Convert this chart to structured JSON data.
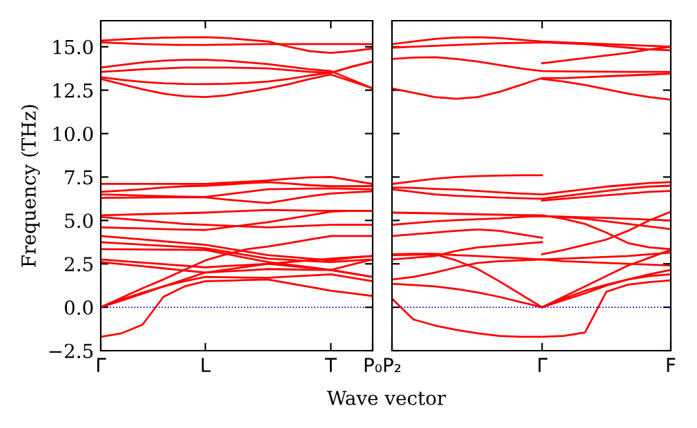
{
  "chart_data": [
    {
      "type": "line",
      "ylabel": "Frequency (THz)",
      "xlabel": "Wave vector",
      "ylim": [
        -2.5,
        16.5
      ],
      "categories": [
        "Γ",
        null,
        null,
        null,
        null,
        "L",
        null,
        null,
        null,
        null,
        null,
        "T",
        null,
        "P₀"
      ],
      "yticks": [
        {
          "value": -2.5,
          "label": "−2.5"
        },
        {
          "value": 0,
          "label": "0.0"
        },
        {
          "value": 2.5,
          "label": "2.5"
        },
        {
          "value": 5,
          "label": "5.0"
        },
        {
          "value": 7.5,
          "label": "7.5"
        },
        {
          "value": 10,
          "label": "10.0"
        },
        {
          "value": 12.5,
          "label": "12.5"
        },
        {
          "value": 15,
          "label": "15.0"
        }
      ],
      "ref_lines": [
        {
          "axis": "y",
          "value": 0,
          "color": "#0000ff",
          "line_style": "dotted"
        }
      ],
      "series": [
        {
          "color": "#ff0000",
          "values": [
            15.35,
            15.42,
            15.48,
            15.52,
            15.54,
            15.55,
            15.5,
            15.4,
            15.3,
            15.0,
            14.75,
            14.65,
            14.75,
            14.9
          ]
        },
        {
          "color": "#ff0000",
          "values": [
            15.25,
            15.2,
            15.15,
            15.12,
            15.1,
            15.1,
            15.12,
            15.14,
            15.15,
            15.15,
            15.15,
            15.15,
            15.15,
            15.15
          ]
        },
        {
          "color": "#ff0000",
          "values": [
            13.8,
            13.95,
            14.1,
            14.2,
            14.25,
            14.25,
            14.2,
            14.1,
            14.0,
            13.85,
            13.7,
            13.6,
            13.1,
            12.6
          ]
        },
        {
          "color": "#ff0000",
          "values": [
            13.55,
            13.62,
            13.7,
            13.75,
            13.8,
            13.8,
            13.8,
            13.78,
            13.75,
            13.65,
            13.55,
            13.5,
            13.85,
            14.15
          ]
        },
        {
          "color": "#ff0000",
          "values": [
            13.25,
            13.1,
            12.98,
            12.9,
            12.86,
            12.85,
            12.87,
            12.92,
            13.0,
            13.15,
            13.35,
            13.5,
            13.85,
            14.15
          ]
        },
        {
          "color": "#ff0000",
          "values": [
            13.15,
            12.85,
            12.55,
            12.3,
            12.15,
            12.1,
            12.2,
            12.4,
            12.6,
            12.85,
            13.15,
            13.4,
            13.0,
            12.6
          ]
        },
        {
          "color": "#ff0000",
          "values": [
            7.1,
            7.1,
            7.1,
            7.1,
            7.1,
            7.1,
            7.17,
            7.23,
            7.3,
            7.4,
            7.48,
            7.5,
            7.3,
            7.1
          ]
        },
        {
          "color": "#ff0000",
          "values": [
            6.65,
            6.72,
            6.8,
            6.9,
            6.97,
            7.0,
            7.07,
            7.14,
            7.2,
            7.12,
            7.03,
            6.97,
            6.97,
            6.98
          ]
        },
        {
          "color": "#ff0000",
          "values": [
            6.5,
            6.47,
            6.43,
            6.4,
            6.37,
            6.35,
            6.5,
            6.65,
            6.8,
            6.82,
            6.84,
            6.85,
            6.82,
            6.8
          ]
        },
        {
          "color": "#ff0000",
          "values": [
            6.3,
            6.31,
            6.32,
            6.33,
            6.33,
            6.33,
            6.2,
            6.1,
            6.0,
            6.2,
            6.4,
            6.55,
            6.62,
            6.68
          ]
        },
        {
          "color": "#ff0000",
          "values": [
            5.3,
            5.33,
            5.36,
            5.39,
            5.42,
            5.45,
            5.5,
            5.55,
            5.6,
            5.58,
            5.56,
            5.55,
            5.55,
            5.55
          ]
        },
        {
          "color": "#ff0000",
          "values": [
            5.2,
            5.1,
            5.0,
            4.9,
            4.8,
            4.75,
            4.7,
            4.65,
            4.6,
            4.65,
            4.7,
            4.75,
            4.75,
            4.75
          ]
        },
        {
          "color": "#ff0000",
          "values": [
            4.6,
            4.57,
            4.54,
            4.5,
            4.47,
            4.45,
            4.6,
            4.75,
            4.9,
            5.1,
            5.3,
            5.5,
            5.55,
            5.55
          ]
        },
        {
          "color": "#ff0000",
          "values": [
            4.1,
            4.0,
            3.9,
            3.8,
            3.7,
            3.6,
            3.4,
            3.2,
            3.0,
            2.9,
            2.8,
            2.7,
            2.85,
            2.95
          ]
        },
        {
          "color": "#ff0000",
          "values": [
            3.75,
            3.68,
            3.61,
            3.54,
            3.47,
            3.4,
            3.2,
            3.0,
            2.8,
            2.73,
            2.66,
            2.6,
            2.68,
            2.75
          ]
        },
        {
          "color": "#ff0000",
          "values": [
            3.35,
            3.34,
            3.33,
            3.32,
            3.31,
            3.3,
            3.07,
            2.83,
            2.6,
            2.45,
            2.3,
            2.15,
            2.45,
            2.75
          ]
        },
        {
          "color": "#ff0000",
          "values": [
            2.75,
            2.66,
            2.57,
            2.48,
            2.39,
            2.3,
            2.37,
            2.43,
            2.5,
            2.6,
            2.7,
            2.8,
            2.88,
            2.95
          ]
        },
        {
          "color": "#ff0000",
          "values": [
            2.6,
            2.48,
            2.36,
            2.24,
            2.12,
            2.0,
            2.07,
            2.13,
            2.2,
            2.18,
            2.16,
            2.15,
            1.95,
            1.75
          ]
        },
        {
          "color": "#ff0000",
          "values": [
            0,
            0.55,
            1.1,
            1.6,
            2.15,
            2.7,
            3.05,
            3.35,
            3.5,
            3.7,
            3.9,
            4.1,
            4.1,
            4.1
          ]
        },
        {
          "color": "#ff0000",
          "values": [
            0,
            0.45,
            0.85,
            1.2,
            1.5,
            1.75,
            1.73,
            1.71,
            1.7,
            1.77,
            1.83,
            1.9,
            1.7,
            1.5
          ]
        },
        {
          "color": "#ff0000",
          "values": [
            0,
            0.38,
            0.78,
            1.2,
            1.6,
            2.0,
            2.17,
            2.33,
            2.5,
            2.38,
            2.27,
            2.15,
            1.95,
            1.75
          ]
        },
        {
          "color": "#ff0000",
          "values": [
            -1.7,
            -1.5,
            -1.0,
            0.6,
            1.2,
            1.5,
            1.53,
            1.57,
            1.6,
            1.38,
            1.17,
            0.95,
            0.8,
            0.65
          ]
        }
      ]
    },
    {
      "type": "line",
      "ylim": [
        -2.5,
        16.5
      ],
      "tick_labels": "x",
      "categories": [
        "P₂",
        null,
        null,
        null,
        null,
        null,
        null,
        "Γ",
        null,
        null,
        null,
        null,
        null,
        "F"
      ],
      "yticks": [
        {
          "value": -2.5,
          "label": null
        },
        {
          "value": 0,
          "label": null
        },
        {
          "value": 2.5,
          "label": null
        },
        {
          "value": 5,
          "label": null
        },
        {
          "value": 7.5,
          "label": null
        },
        {
          "value": 10,
          "label": null
        },
        {
          "value": 12.5,
          "label": null
        },
        {
          "value": 15,
          "label": null
        }
      ],
      "ref_lines": [
        {
          "axis": "y",
          "value": 0,
          "color": "#0000ff",
          "line_style": "dotted"
        }
      ],
      "series": [
        {
          "color": "#ff0000",
          "values": [
            15.15,
            15.3,
            15.45,
            15.53,
            15.55,
            15.5,
            15.4,
            15.3,
            15.25,
            15.2,
            15.15,
            15.1,
            15.05,
            15.0
          ]
        },
        {
          "color": "#ff0000",
          "values": [
            14.95,
            15.0,
            15.05,
            15.1,
            15.15,
            15.2,
            15.22,
            15.25,
            15.2,
            15.15,
            15.05,
            14.95,
            14.85,
            14.8
          ]
        },
        {
          "color": "#ff0000",
          "values": [
            14.3,
            14.38,
            14.4,
            14.3,
            14.15,
            13.95,
            13.75,
            13.6,
            13.58,
            13.57,
            13.56,
            13.55,
            13.55,
            13.55
          ]
        },
        {
          "color": "#ff0000",
          "values": [
            12.6,
            12.35,
            12.1,
            12.0,
            12.1,
            12.4,
            12.8,
            13.2,
            13.2,
            13.25,
            13.3,
            13.35,
            13.4,
            13.45
          ]
        },
        {
          "color": "#ff0000",
          "values": [
            null,
            null,
            null,
            null,
            null,
            null,
            null,
            14.05,
            14.2,
            14.35,
            14.5,
            14.65,
            14.85,
            15.0
          ]
        },
        {
          "color": "#ff0000",
          "values": [
            null,
            null,
            null,
            null,
            null,
            null,
            null,
            13.15,
            13.0,
            12.8,
            12.55,
            12.3,
            12.1,
            11.95
          ]
        },
        {
          "color": "#ff0000",
          "values": [
            7.1,
            7.25,
            7.4,
            7.5,
            7.55,
            7.58,
            7.6,
            7.6,
            null,
            null,
            null,
            null,
            null,
            null
          ]
        },
        {
          "color": "#ff0000",
          "values": [
            6.9,
            6.88,
            6.82,
            6.78,
            6.7,
            6.62,
            6.55,
            6.5,
            6.65,
            6.8,
            6.95,
            7.05,
            7.15,
            7.2
          ]
        },
        {
          "color": "#ff0000",
          "values": [
            6.8,
            6.65,
            6.5,
            6.42,
            6.37,
            6.32,
            6.28,
            6.25,
            6.4,
            6.55,
            6.7,
            6.85,
            6.95,
            7.0
          ]
        },
        {
          "color": "#ff0000",
          "values": [
            null,
            null,
            null,
            null,
            null,
            null,
            null,
            6.15,
            6.25,
            6.35,
            6.45,
            6.55,
            6.65,
            6.7
          ]
        },
        {
          "color": "#ff0000",
          "values": [
            5.45,
            5.43,
            5.41,
            5.38,
            5.35,
            5.33,
            5.31,
            5.3,
            5.1,
            4.8,
            4.3,
            3.7,
            3.45,
            3.35
          ]
        },
        {
          "color": "#ff0000",
          "values": [
            4.75,
            4.85,
            4.95,
            5.02,
            5.07,
            5.12,
            5.2,
            5.25,
            5.22,
            5.18,
            5.15,
            5.1,
            5.05,
            5.0
          ]
        },
        {
          "color": "#ff0000",
          "values": [
            null,
            null,
            null,
            null,
            null,
            null,
            null,
            5.25,
            5.2,
            5.1,
            4.95,
            4.8,
            4.65,
            4.5
          ]
        },
        {
          "color": "#ff0000",
          "values": [
            4.1,
            4.2,
            4.3,
            4.4,
            4.48,
            4.4,
            4.2,
            4.0,
            null,
            null,
            null,
            null,
            null,
            null
          ]
        },
        {
          "color": "#ff0000",
          "values": [
            3.05,
            3.08,
            3.08,
            3.0,
            2.95,
            2.88,
            2.82,
            2.75,
            2.8,
            2.85,
            2.9,
            2.95,
            3.05,
            3.15
          ]
        },
        {
          "color": "#ff0000",
          "values": [
            2.75,
            2.85,
            2.95,
            3.25,
            3.45,
            3.55,
            3.65,
            3.75,
            null,
            null,
            null,
            null,
            null,
            null
          ]
        },
        {
          "color": "#ff0000",
          "values": [
            3.0,
            3.02,
            3.05,
            2.7,
            2.2,
            1.5,
            0.75,
            0,
            0.6,
            1.2,
            1.8,
            2.4,
            2.85,
            3.3
          ]
        },
        {
          "color": "#ff0000",
          "values": [
            1.6,
            1.75,
            2.0,
            2.3,
            2.55,
            2.65,
            2.7,
            2.75,
            2.65,
            2.6,
            2.55,
            2.5,
            2.45,
            2.4
          ]
        },
        {
          "color": "#ff0000",
          "values": [
            1.35,
            1.28,
            1.2,
            1.05,
            0.85,
            0.6,
            0.3,
            0,
            0.5,
            0.95,
            1.3,
            1.6,
            1.9,
            2.15
          ]
        },
        {
          "color": "#ff0000",
          "values": [
            null,
            null,
            null,
            null,
            null,
            null,
            null,
            0,
            0.4,
            0.8,
            1.25,
            1.6,
            1.8,
            1.9
          ]
        },
        {
          "color": "#ff0000",
          "values": [
            null,
            null,
            null,
            null,
            null,
            null,
            null,
            3.05,
            3.3,
            3.6,
            3.9,
            4.4,
            5.0,
            5.5
          ]
        },
        {
          "color": "#ff0000",
          "values": [
            0.5,
            -0.7,
            -1.05,
            -1.3,
            -1.5,
            -1.65,
            -1.7,
            -1.7,
            -1.65,
            -1.45,
            0.9,
            1.3,
            1.45,
            1.55
          ]
        }
      ]
    }
  ]
}
